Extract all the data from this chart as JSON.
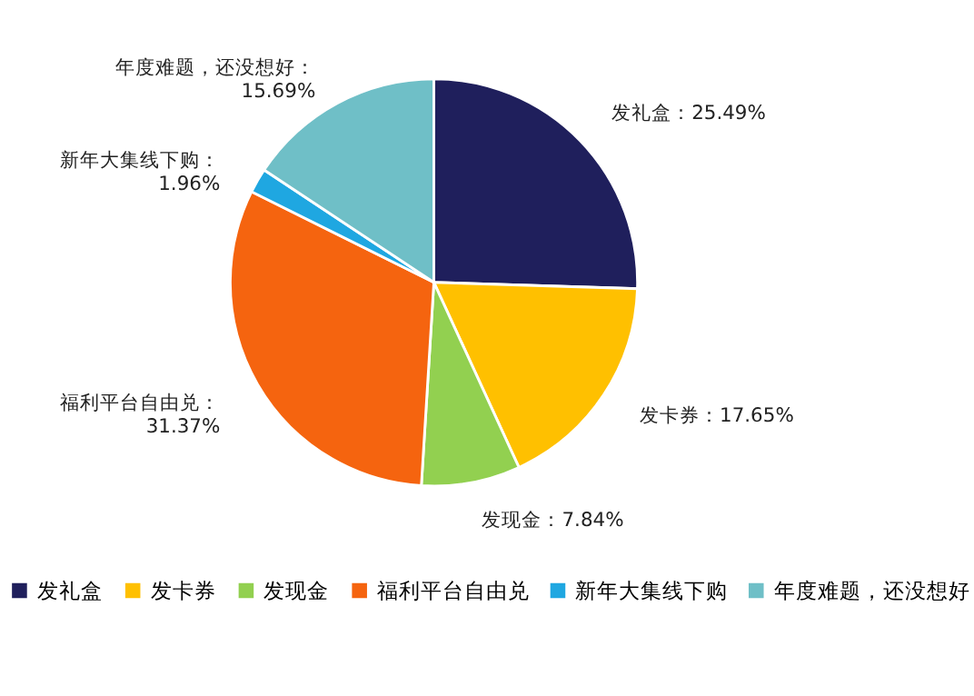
{
  "chart_data": {
    "type": "pie",
    "categories": [
      "发礼盒",
      "发卡券",
      "发现金",
      "福利平台自由兑",
      "新年大集线下购",
      "年度难题，还没想好"
    ],
    "values": [
      25.49,
      17.65,
      7.84,
      31.37,
      1.96,
      15.69
    ],
    "colors": [
      "#1f1f5c",
      "#ffc000",
      "#92d050",
      "#f5640f",
      "#1fa7e1",
      "#6fbfc7"
    ],
    "value_labels": [
      "：25.49%",
      "：17.65%",
      "：7.84%",
      "：31.37%",
      "：1.96%",
      "：15.69%"
    ],
    "legend": "bottom"
  }
}
